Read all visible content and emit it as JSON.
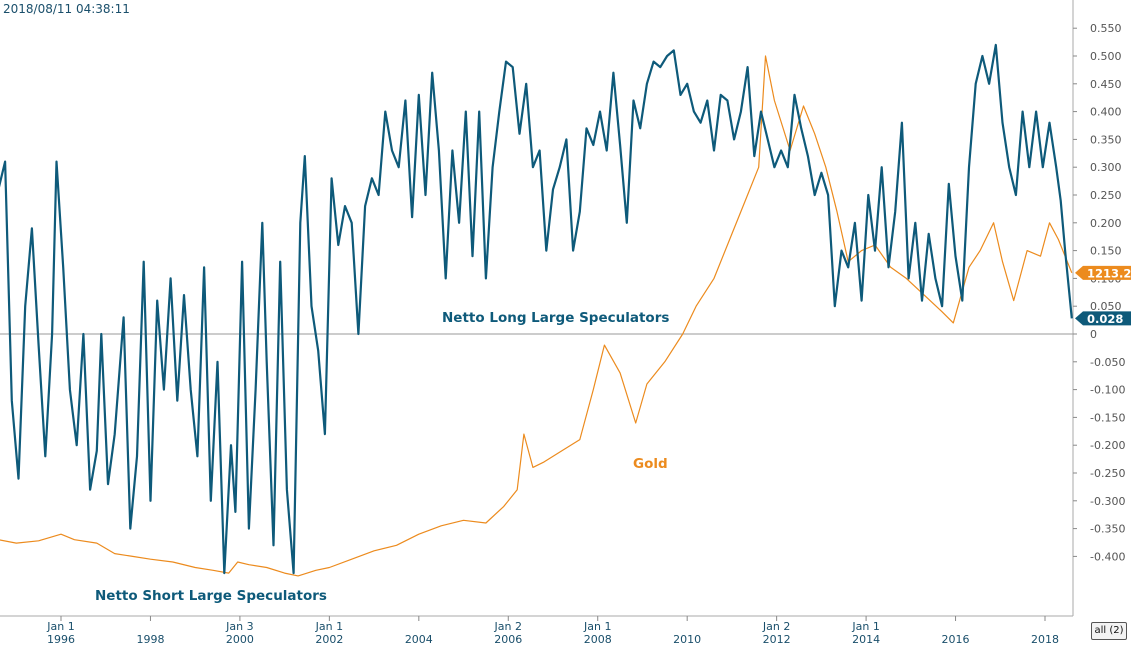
{
  "timestamp": "2018/08/11 04:38:11",
  "all_button": "all (2)",
  "colors": {
    "net_long": "#0e5a7a",
    "gold": "#ec8b1e",
    "axis_text": "#555555"
  },
  "annotations": {
    "net_long": "Netto Long Large Speculators",
    "net_short": "Netto Short Large Speculators",
    "gold": "Gold"
  },
  "chart_data": {
    "type": "line",
    "x_range": [
      1994.6,
      2018.6
    ],
    "ylim": [
      -0.455,
      0.56
    ],
    "y_ticks": [
      0.55,
      0.5,
      0.45,
      0.4,
      0.35,
      0.3,
      0.25,
      0.2,
      0.15,
      0.1,
      0.05,
      0,
      -0.05,
      -0.1,
      -0.15,
      -0.2,
      -0.25,
      -0.3,
      -0.35,
      -0.4
    ],
    "y_tick_labels": [
      "0.550",
      "0.500",
      "0.450",
      "0.400",
      "0.350",
      "0.300",
      "0.250",
      "0.200",
      "0.150",
      "0.100",
      "0.050",
      "0",
      "-0.050",
      "-0.100",
      "-0.150",
      "-0.200",
      "-0.250",
      "-0.300",
      "-0.350",
      "-0.400"
    ],
    "x_ticks": [
      {
        "x": 1996.0,
        "top": "Jan 1",
        "bottom": "1996"
      },
      {
        "x": 1998.0,
        "top": "",
        "bottom": "1998"
      },
      {
        "x": 2000.0,
        "top": "Jan 3",
        "bottom": "2000"
      },
      {
        "x": 2002.0,
        "top": "Jan 1",
        "bottom": "2002"
      },
      {
        "x": 2004.0,
        "top": "",
        "bottom": "2004"
      },
      {
        "x": 2006.0,
        "top": "Jan 2",
        "bottom": "2006"
      },
      {
        "x": 2008.0,
        "top": "Jan 1",
        "bottom": "2008"
      },
      {
        "x": 2010.0,
        "top": "",
        "bottom": "2010"
      },
      {
        "x": 2012.0,
        "top": "Jan 2",
        "bottom": "2012"
      },
      {
        "x": 2014.0,
        "top": "Jan 1",
        "bottom": "2014"
      },
      {
        "x": 2016.0,
        "top": "",
        "bottom": "2016"
      },
      {
        "x": 2018.0,
        "top": "",
        "bottom": "2018"
      }
    ],
    "zero_line": 0,
    "grid": false,
    "last_values": [
      {
        "series": "net_long",
        "label": "0.028",
        "value": 0.028
      },
      {
        "series": "gold",
        "label": "1213.2",
        "value": 0.11
      }
    ],
    "series": [
      {
        "key": "net_long",
        "points": [
          [
            1994.6,
            0.26
          ],
          [
            1994.75,
            0.31
          ],
          [
            1994.9,
            -0.12
          ],
          [
            1995.05,
            -0.26
          ],
          [
            1995.2,
            0.05
          ],
          [
            1995.35,
            0.19
          ],
          [
            1995.5,
            -0.02
          ],
          [
            1995.65,
            -0.22
          ],
          [
            1995.8,
            0.0
          ],
          [
            1995.9,
            0.31
          ],
          [
            1996.05,
            0.12
          ],
          [
            1996.2,
            -0.1
          ],
          [
            1996.35,
            -0.2
          ],
          [
            1996.5,
            0.0
          ],
          [
            1996.65,
            -0.28
          ],
          [
            1996.8,
            -0.21
          ],
          [
            1996.9,
            0.0
          ],
          [
            1997.05,
            -0.27
          ],
          [
            1997.2,
            -0.18
          ],
          [
            1997.4,
            0.03
          ],
          [
            1997.55,
            -0.35
          ],
          [
            1997.7,
            -0.22
          ],
          [
            1997.85,
            0.13
          ],
          [
            1998.0,
            -0.3
          ],
          [
            1998.15,
            0.06
          ],
          [
            1998.3,
            -0.1
          ],
          [
            1998.45,
            0.1
          ],
          [
            1998.6,
            -0.12
          ],
          [
            1998.75,
            0.07
          ],
          [
            1998.9,
            -0.1
          ],
          [
            1999.05,
            -0.22
          ],
          [
            1999.2,
            0.12
          ],
          [
            1999.35,
            -0.3
          ],
          [
            1999.5,
            -0.05
          ],
          [
            1999.65,
            -0.43
          ],
          [
            1999.8,
            -0.2
          ],
          [
            1999.9,
            -0.32
          ],
          [
            2000.05,
            0.13
          ],
          [
            2000.2,
            -0.35
          ],
          [
            2000.35,
            -0.1
          ],
          [
            2000.5,
            0.2
          ],
          [
            2000.6,
            -0.05
          ],
          [
            2000.75,
            -0.38
          ],
          [
            2000.9,
            0.13
          ],
          [
            2001.05,
            -0.28
          ],
          [
            2001.2,
            -0.43
          ],
          [
            2001.35,
            0.2
          ],
          [
            2001.45,
            0.32
          ],
          [
            2001.6,
            0.05
          ],
          [
            2001.75,
            -0.03
          ],
          [
            2001.9,
            -0.18
          ],
          [
            2002.05,
            0.28
          ],
          [
            2002.2,
            0.16
          ],
          [
            2002.35,
            0.23
          ],
          [
            2002.5,
            0.2
          ],
          [
            2002.65,
            0.0
          ],
          [
            2002.8,
            0.23
          ],
          [
            2002.95,
            0.28
          ],
          [
            2003.1,
            0.25
          ],
          [
            2003.25,
            0.4
          ],
          [
            2003.4,
            0.33
          ],
          [
            2003.55,
            0.3
          ],
          [
            2003.7,
            0.42
          ],
          [
            2003.85,
            0.21
          ],
          [
            2004.0,
            0.43
          ],
          [
            2004.15,
            0.25
          ],
          [
            2004.3,
            0.47
          ],
          [
            2004.45,
            0.33
          ],
          [
            2004.6,
            0.1
          ],
          [
            2004.75,
            0.33
          ],
          [
            2004.9,
            0.2
          ],
          [
            2005.05,
            0.4
          ],
          [
            2005.2,
            0.14
          ],
          [
            2005.35,
            0.4
          ],
          [
            2005.5,
            0.1
          ],
          [
            2005.65,
            0.3
          ],
          [
            2005.8,
            0.4
          ],
          [
            2005.95,
            0.49
          ],
          [
            2006.1,
            0.48
          ],
          [
            2006.25,
            0.36
          ],
          [
            2006.4,
            0.45
          ],
          [
            2006.55,
            0.3
          ],
          [
            2006.7,
            0.33
          ],
          [
            2006.85,
            0.15
          ],
          [
            2007.0,
            0.26
          ],
          [
            2007.15,
            0.3
          ],
          [
            2007.3,
            0.35
          ],
          [
            2007.45,
            0.15
          ],
          [
            2007.6,
            0.22
          ],
          [
            2007.75,
            0.37
          ],
          [
            2007.9,
            0.34
          ],
          [
            2008.05,
            0.4
          ],
          [
            2008.2,
            0.33
          ],
          [
            2008.35,
            0.47
          ],
          [
            2008.5,
            0.34
          ],
          [
            2008.65,
            0.2
          ],
          [
            2008.8,
            0.42
          ],
          [
            2008.95,
            0.37
          ],
          [
            2009.1,
            0.45
          ],
          [
            2009.25,
            0.49
          ],
          [
            2009.4,
            0.48
          ],
          [
            2009.55,
            0.5
          ],
          [
            2009.7,
            0.51
          ],
          [
            2009.85,
            0.43
          ],
          [
            2010.0,
            0.45
          ],
          [
            2010.15,
            0.4
          ],
          [
            2010.3,
            0.38
          ],
          [
            2010.45,
            0.42
          ],
          [
            2010.6,
            0.33
          ],
          [
            2010.75,
            0.43
          ],
          [
            2010.9,
            0.42
          ],
          [
            2011.05,
            0.35
          ],
          [
            2011.2,
            0.4
          ],
          [
            2011.35,
            0.48
          ],
          [
            2011.5,
            0.32
          ],
          [
            2011.65,
            0.4
          ],
          [
            2011.8,
            0.35
          ],
          [
            2011.95,
            0.3
          ],
          [
            2012.1,
            0.33
          ],
          [
            2012.25,
            0.3
          ],
          [
            2012.4,
            0.43
          ],
          [
            2012.55,
            0.37
          ],
          [
            2012.7,
            0.32
          ],
          [
            2012.85,
            0.25
          ],
          [
            2013.0,
            0.29
          ],
          [
            2013.15,
            0.25
          ],
          [
            2013.3,
            0.05
          ],
          [
            2013.45,
            0.15
          ],
          [
            2013.6,
            0.12
          ],
          [
            2013.75,
            0.2
          ],
          [
            2013.9,
            0.06
          ],
          [
            2014.05,
            0.25
          ],
          [
            2014.2,
            0.15
          ],
          [
            2014.35,
            0.3
          ],
          [
            2014.5,
            0.12
          ],
          [
            2014.65,
            0.22
          ],
          [
            2014.8,
            0.38
          ],
          [
            2014.95,
            0.1
          ],
          [
            2015.1,
            0.2
          ],
          [
            2015.25,
            0.06
          ],
          [
            2015.4,
            0.18
          ],
          [
            2015.55,
            0.1
          ],
          [
            2015.7,
            0.05
          ],
          [
            2015.85,
            0.27
          ],
          [
            2016.0,
            0.14
          ],
          [
            2016.15,
            0.06
          ],
          [
            2016.3,
            0.3
          ],
          [
            2016.45,
            0.45
          ],
          [
            2016.6,
            0.5
          ],
          [
            2016.75,
            0.45
          ],
          [
            2016.9,
            0.52
          ],
          [
            2017.05,
            0.38
          ],
          [
            2017.2,
            0.3
          ],
          [
            2017.35,
            0.25
          ],
          [
            2017.5,
            0.4
          ],
          [
            2017.65,
            0.3
          ],
          [
            2017.8,
            0.4
          ],
          [
            2017.95,
            0.3
          ],
          [
            2018.1,
            0.38
          ],
          [
            2018.25,
            0.3
          ],
          [
            2018.35,
            0.24
          ],
          [
            2018.45,
            0.15
          ],
          [
            2018.6,
            0.028
          ]
        ]
      },
      {
        "key": "gold",
        "points": [
          [
            1994.6,
            -0.37
          ],
          [
            1995.0,
            -0.376
          ],
          [
            1995.5,
            -0.372
          ],
          [
            1996.0,
            -0.36
          ],
          [
            1996.3,
            -0.37
          ],
          [
            1996.8,
            -0.376
          ],
          [
            1997.2,
            -0.395
          ],
          [
            1997.6,
            -0.4
          ],
          [
            1998.0,
            -0.405
          ],
          [
            1998.5,
            -0.41
          ],
          [
            1999.0,
            -0.42
          ],
          [
            1999.4,
            -0.425
          ],
          [
            1999.75,
            -0.43
          ],
          [
            1999.95,
            -0.41
          ],
          [
            2000.2,
            -0.415
          ],
          [
            2000.6,
            -0.42
          ],
          [
            2001.0,
            -0.43
          ],
          [
            2001.3,
            -0.435
          ],
          [
            2001.7,
            -0.425
          ],
          [
            2002.0,
            -0.42
          ],
          [
            2002.5,
            -0.405
          ],
          [
            2003.0,
            -0.39
          ],
          [
            2003.5,
            -0.38
          ],
          [
            2004.0,
            -0.36
          ],
          [
            2004.5,
            -0.345
          ],
          [
            2005.0,
            -0.335
          ],
          [
            2005.5,
            -0.34
          ],
          [
            2005.9,
            -0.31
          ],
          [
            2006.2,
            -0.28
          ],
          [
            2006.35,
            -0.18
          ],
          [
            2006.55,
            -0.24
          ],
          [
            2006.8,
            -0.23
          ],
          [
            2007.2,
            -0.21
          ],
          [
            2007.6,
            -0.19
          ],
          [
            2007.9,
            -0.1
          ],
          [
            2008.15,
            -0.02
          ],
          [
            2008.5,
            -0.07
          ],
          [
            2008.85,
            -0.16
          ],
          [
            2009.1,
            -0.09
          ],
          [
            2009.5,
            -0.05
          ],
          [
            2009.9,
            0.0
          ],
          [
            2010.2,
            0.05
          ],
          [
            2010.6,
            0.1
          ],
          [
            2011.0,
            0.18
          ],
          [
            2011.3,
            0.24
          ],
          [
            2011.6,
            0.3
          ],
          [
            2011.75,
            0.5
          ],
          [
            2011.95,
            0.42
          ],
          [
            2012.3,
            0.33
          ],
          [
            2012.6,
            0.41
          ],
          [
            2012.85,
            0.36
          ],
          [
            2013.1,
            0.3
          ],
          [
            2013.35,
            0.22
          ],
          [
            2013.6,
            0.13
          ],
          [
            2013.9,
            0.15
          ],
          [
            2014.2,
            0.16
          ],
          [
            2014.55,
            0.12
          ],
          [
            2014.9,
            0.1
          ],
          [
            2015.3,
            0.07
          ],
          [
            2015.7,
            0.04
          ],
          [
            2015.95,
            0.02
          ],
          [
            2016.3,
            0.12
          ],
          [
            2016.55,
            0.15
          ],
          [
            2016.85,
            0.2
          ],
          [
            2017.05,
            0.13
          ],
          [
            2017.3,
            0.06
          ],
          [
            2017.6,
            0.15
          ],
          [
            2017.9,
            0.14
          ],
          [
            2018.1,
            0.2
          ],
          [
            2018.3,
            0.17
          ],
          [
            2018.45,
            0.14
          ],
          [
            2018.6,
            0.11
          ]
        ]
      }
    ]
  }
}
